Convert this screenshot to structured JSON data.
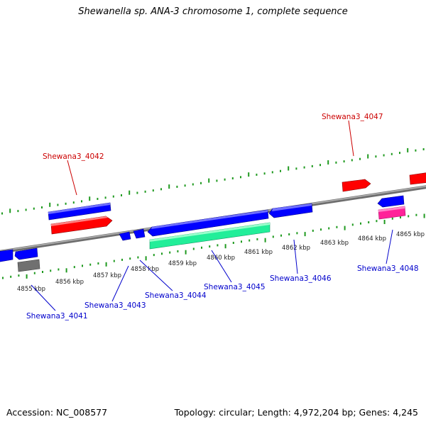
{
  "title": "Shewanella sp. ANA-3 chromosome 1, complete sequence",
  "footer": {
    "accession": "Accession: NC_008577",
    "summary": "Topology: circular; Length: 4,972,204 bp; Genes: 4,245"
  },
  "colors": {
    "forward_gene": "#ff0000",
    "reverse_gene": "#0000ff",
    "rna_feature": "#22ee99",
    "pseudo_feature": "#808080",
    "magenta_feature": "#ff2299",
    "backbone": "#888888",
    "tick_marks": "#22aa22",
    "forward_label": "#cc0000",
    "reverse_label": "#0000cc"
  },
  "scale": {
    "unit": "kbp",
    "ticks": [
      "4855 kbp",
      "4856 kbp",
      "4857 kbp",
      "4858 kbp",
      "4859 kbp",
      "4860 kbp",
      "4861 kbp",
      "4862 kbp",
      "4863 kbp",
      "4864 kbp",
      "4865 kbp"
    ]
  },
  "gene_labels": {
    "forward": [
      "Shewana3_4042",
      "Shewana3_4047"
    ],
    "reverse": [
      "Shewana3_4041",
      "Shewana3_4043",
      "Shewana3_4044",
      "Shewana3_4045",
      "Shewana3_4046",
      "Shewana3_4048"
    ]
  }
}
